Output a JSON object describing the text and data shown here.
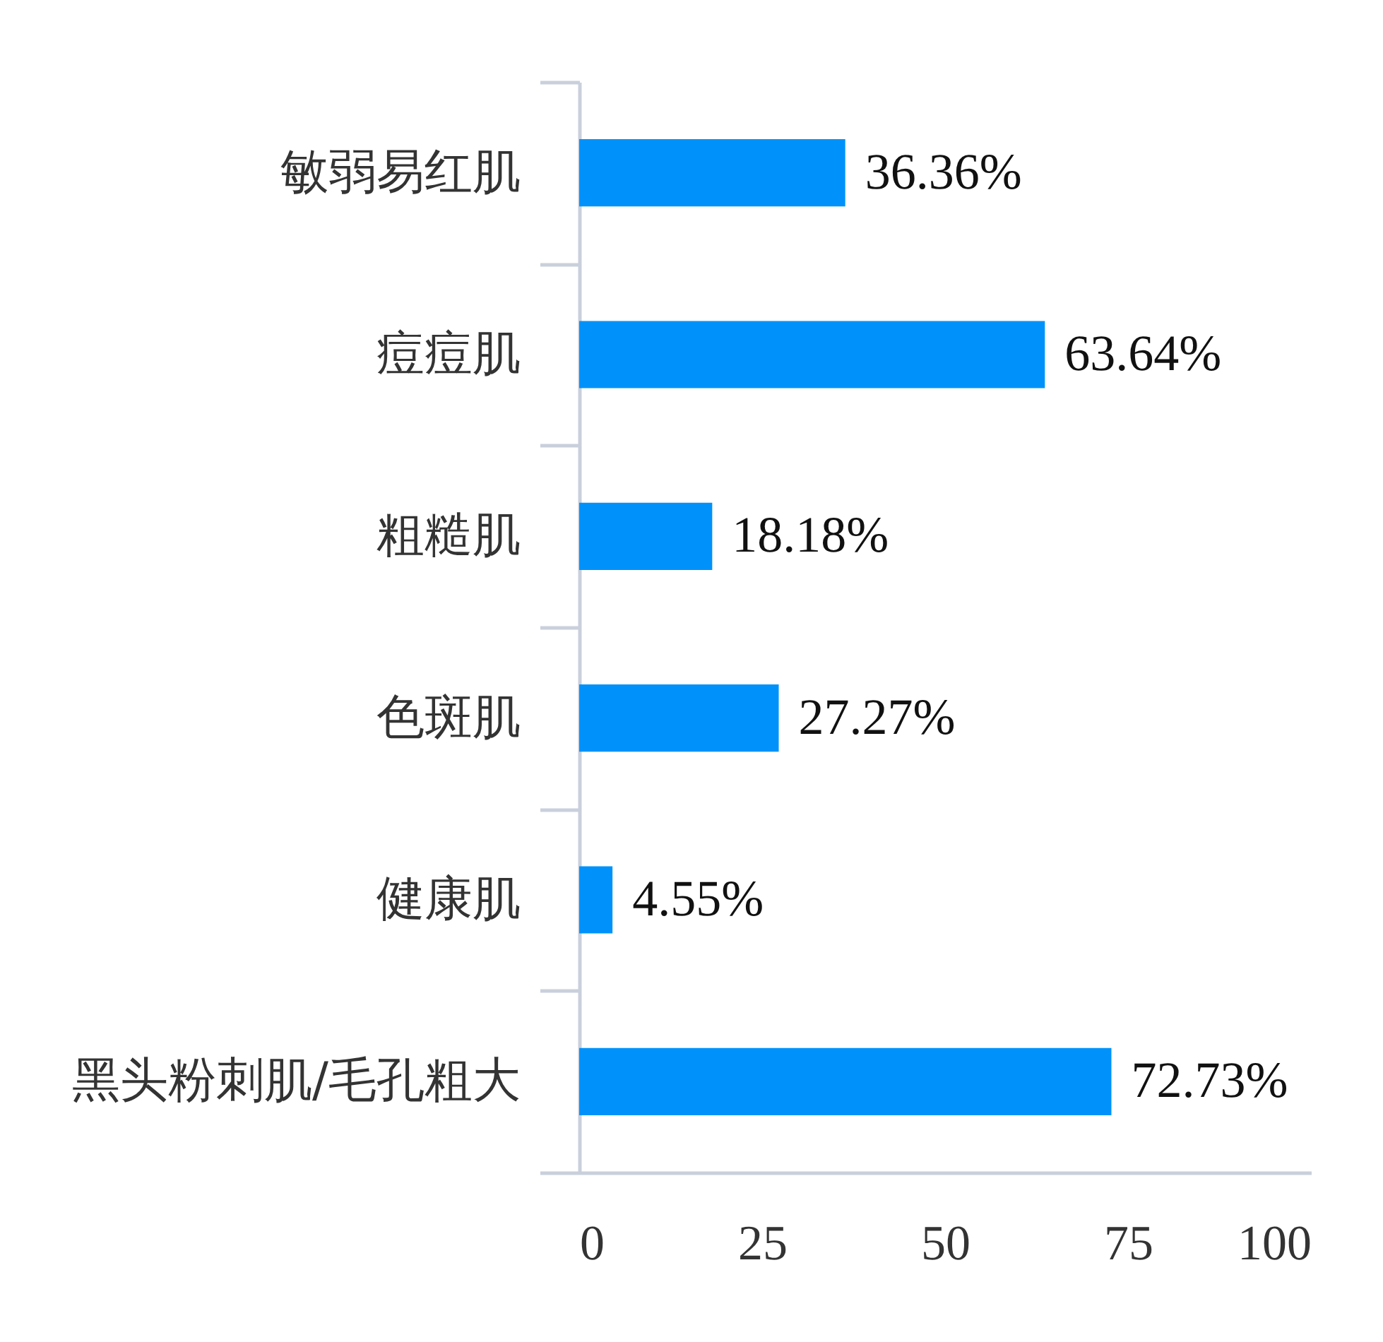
{
  "chart_data": {
    "type": "bar",
    "orientation": "horizontal",
    "categories": [
      "敏弱易红肌",
      "痘痘肌",
      "粗糙肌",
      "色斑肌",
      "健康肌",
      "黑头粉刺肌/毛孔粗大"
    ],
    "values": [
      36.36,
      63.64,
      18.18,
      27.27,
      4.55,
      72.73
    ],
    "value_labels": [
      "36.36%",
      "63.64%",
      "18.18%",
      "27.27%",
      "4.55%",
      "72.73%"
    ],
    "color": "#0092fa",
    "xlim": [
      0,
      100
    ],
    "xticks": [
      0,
      25,
      50,
      75,
      100
    ],
    "grid": false
  }
}
